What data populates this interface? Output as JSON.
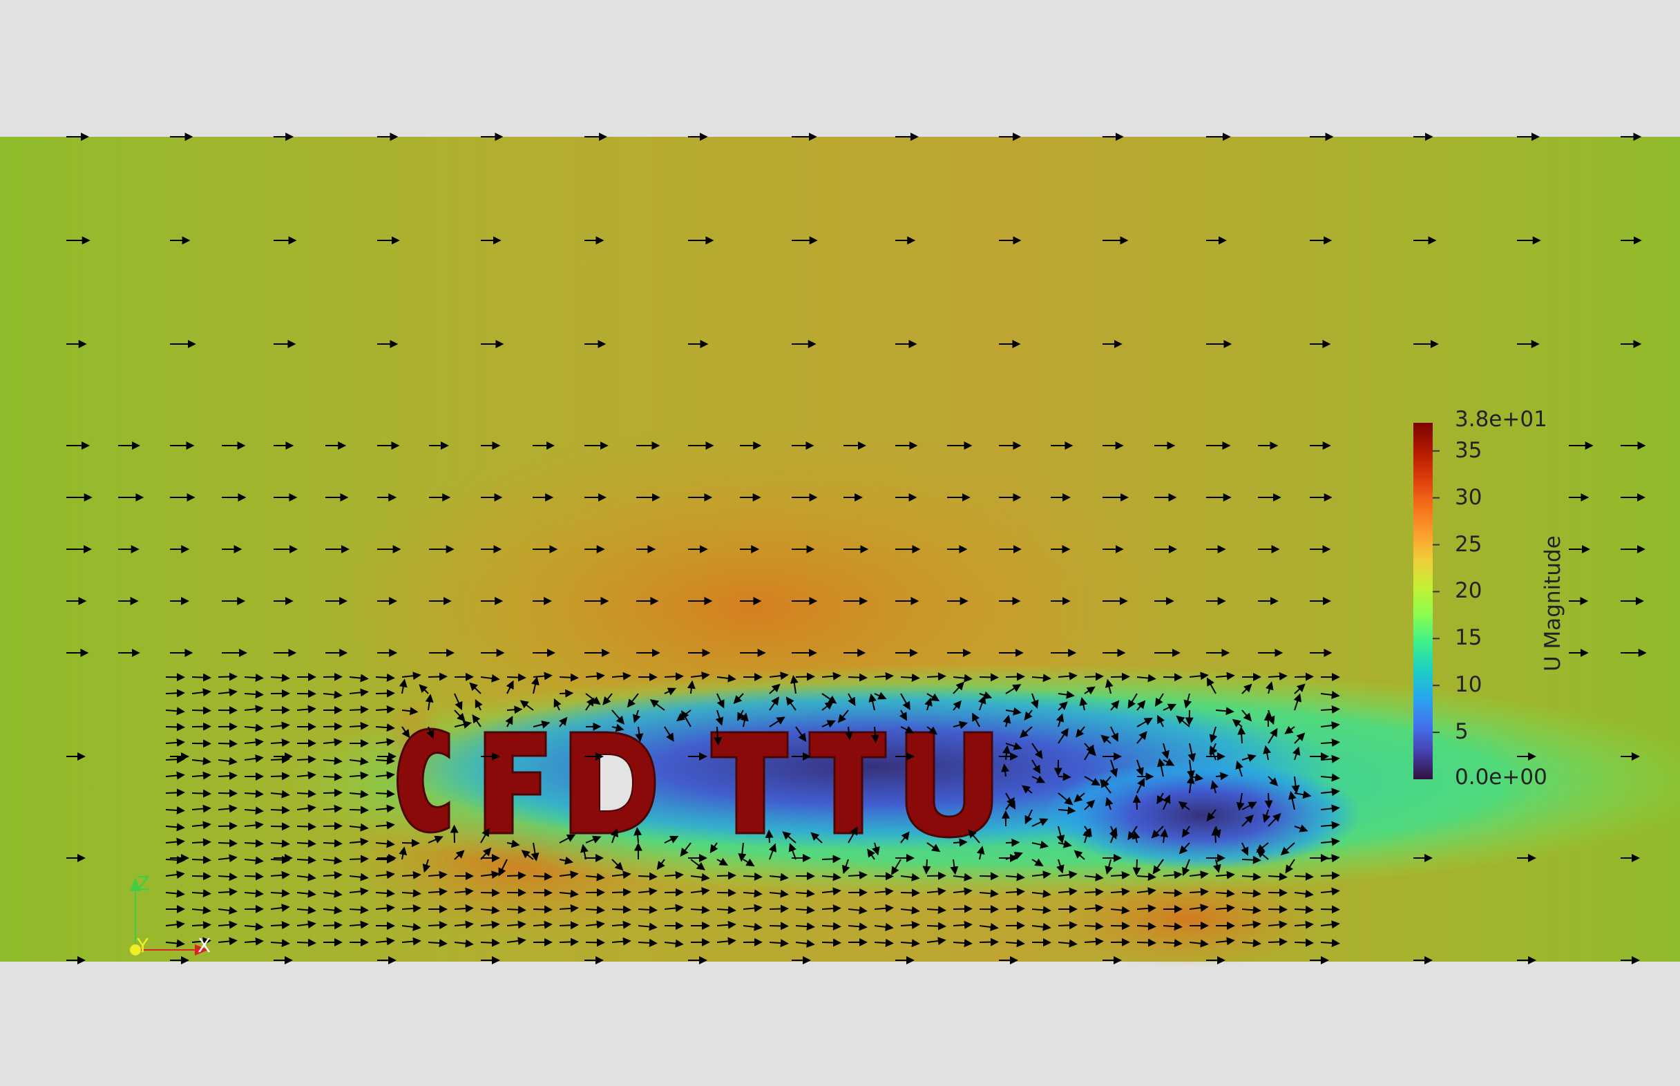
{
  "app": "ParaView render view",
  "field": {
    "name": "U Magnitude",
    "range": [
      0,
      38
    ],
    "colormap": "Turbo",
    "colorbar": {
      "title": "U Magnitude",
      "max_label": "3.8e+01",
      "min_label": "0.0e+00",
      "ticks": [
        "35",
        "30",
        "25",
        "20",
        "15",
        "10",
        "5"
      ],
      "colors": [
        "#7a0403",
        "#b01901",
        "#dc3b0b",
        "#f46d1b",
        "#fd9c2c",
        "#eecf3a",
        "#c4f034",
        "#8bfd4e",
        "#3ff08a",
        "#1ed0c0",
        "#28a7ed",
        "#4276f1",
        "#4741b0",
        "#30123b"
      ]
    }
  },
  "geometry": {
    "text_object": "CFD TTU",
    "letters": [
      "C",
      "F",
      "D",
      "T",
      "T",
      "U"
    ],
    "color": "#8a0a0a"
  },
  "colors": {
    "background": "#e1e1e1",
    "freestream": "#93bb2c"
  },
  "orientation_axes": {
    "z_label": "Z",
    "y_label": "Y",
    "x_label": "X",
    "z_color": "#44cc44",
    "x_color": "#dd2222",
    "y_color": "#eeee22"
  }
}
